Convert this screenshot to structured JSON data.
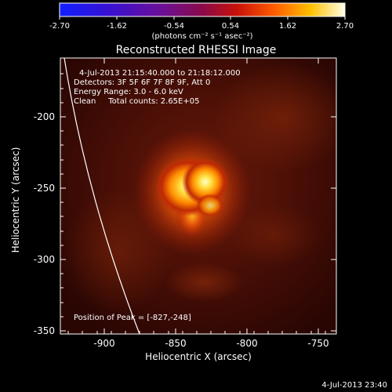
{
  "colorbar": {
    "tick_labels": [
      "-2.70",
      "-1.62",
      "-0.54",
      "0.54",
      "1.62",
      "2.70"
    ],
    "units_label": "(photons cm⁻² s⁻¹ asec⁻²)",
    "range": [
      -2.7,
      2.7
    ],
    "colormap": "rhessi-thermal (blue-purple-red-yellow-white)"
  },
  "plot": {
    "title": "Reconstructed RHESSI Image",
    "info_lines": [
      "4-Jul-2013 21:15:40.000 to 21:18:12.000",
      "Detectors: 3F 5F 6F 7F 8F 9F, Att 0",
      "Energy Range: 3.0 - 6.0 keV",
      "Clean     Total counts: 2.65E+05"
    ],
    "peak_text": "Position of Peak = [-827,-248]",
    "xlabel": "Heliocentric X (arcsec)",
    "ylabel": "Heliocentric Y (arcsec)",
    "x_ticks": [
      "-900",
      "-850",
      "-800",
      "-750"
    ],
    "y_ticks": [
      "-200",
      "-250",
      "-300",
      "-350"
    ],
    "xlim": [
      -935,
      -740
    ],
    "ylim": [
      -353,
      -160
    ],
    "peak_position": [
      -827,
      -248
    ]
  },
  "footer": {
    "timestamp": "4-Jul-2013 23:40"
  }
}
